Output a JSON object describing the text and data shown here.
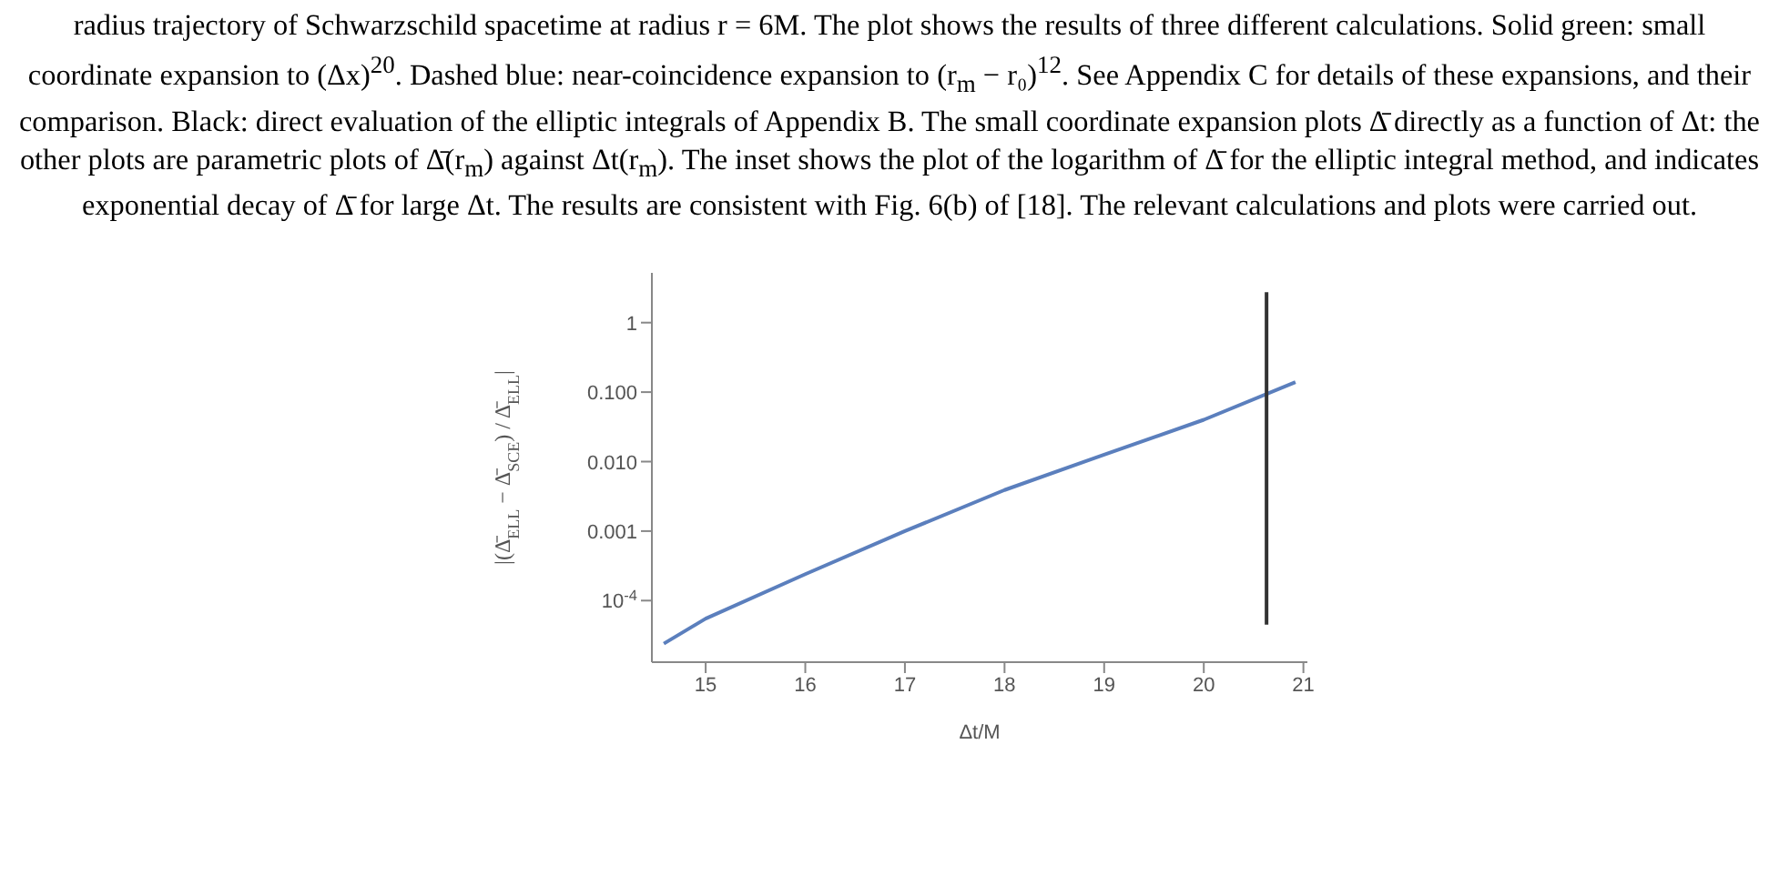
{
  "chart_data": {
    "type": "line",
    "annotations": [
      "radius trajectory of Schwarzschild spacetime at radius r = 6M. The plot shows the results of three different calculations. Solid green: small coordinate expansion to (Δx)$^{20}$. Dashed blue: near-coincidence expansion to (r$_{m}$ − r₀)$^{12}$. See Appendix C for details of these expansions, and their comparison. Black: direct evaluation of the elliptic integrals of Appendix B. The small coordinate expansion plots Δ̄ directly as a function of Δt: the other plots are parametric plots of Δ̄(r$_{m}$) against Δt(r$_{m}$). The inset shows the plot of the logarithm of Δ̄ for the elliptic integral method, and indicates exponential decay of Δ̄ for large Δt. The results are consistent with Fig. 6(b) of [18]. The relevant calculations and plots were carried out."
    ],
    "xlabel": "Δt/M",
    "ylabel": "|(Δ̄$_{ELL}$ − Δ̄$_{SCE}$) / Δ̄$_{ELL}$|",
    "log": "y",
    "xlim": [
      14.46,
      21.04
    ],
    "xticks": [
      15,
      16,
      17,
      18,
      19,
      20,
      21
    ],
    "ylim": [
      1.3e-05,
      5.2
    ],
    "yticks": [
      {
        "value": 1,
        "label": "1"
      },
      {
        "value": 0.1,
        "label": "0.100"
      },
      {
        "value": 0.01,
        "label": "0.010"
      },
      {
        "value": 0.001,
        "label": "0.001"
      },
      {
        "value": 0.0001,
        "label": "10$^{-4}$"
      }
    ],
    "marker": "none",
    "line_style": "solid",
    "series": [
      {
        "color": "#5b7fbd",
        "x": [
          14.58,
          15,
          16,
          17,
          18,
          19,
          20,
          20.92
        ],
        "values": [
          2.4e-05,
          5.5e-05,
          0.00024,
          0.001,
          0.0039,
          0.0126,
          0.04,
          0.139
        ]
      },
      {
        "color": "#333333",
        "x": [
          20.63,
          20.63
        ],
        "values": [
          4.5e-05,
          2.75
        ]
      }
    ]
  }
}
